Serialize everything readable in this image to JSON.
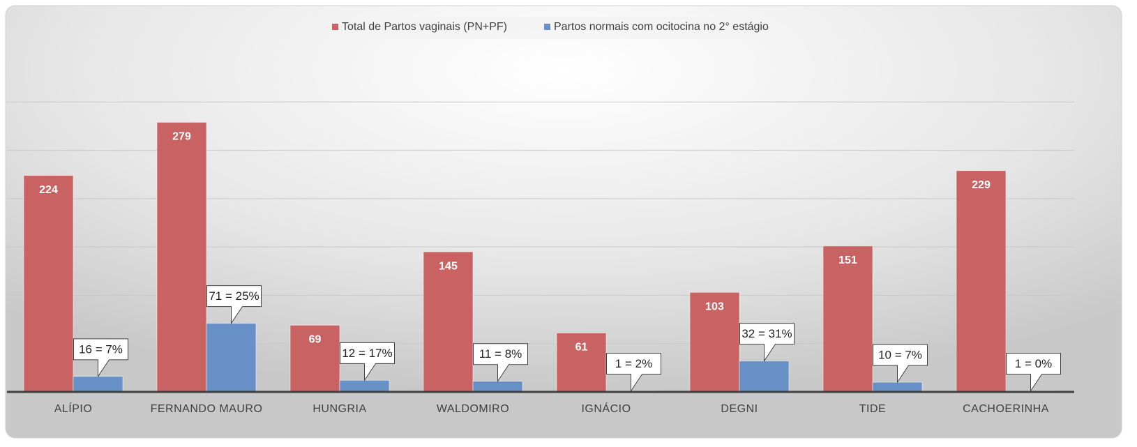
{
  "chart_data": {
    "type": "bar",
    "categories": [
      "ALÍPIO",
      "FERNANDO MAURO",
      "HUNGRIA",
      "WALDOMIRO",
      "IGNÁCIO",
      "DEGNI",
      "TIDE",
      "CACHOERINHA"
    ],
    "series": [
      {
        "name": "Total de Partos vaginais (PN+PF)",
        "color": "#c96363",
        "values": [
          224,
          279,
          69,
          145,
          61,
          103,
          151,
          229
        ]
      },
      {
        "name": "Partos normais com ocitocina no 2° estágio",
        "color": "#6690c6",
        "values": [
          16,
          71,
          12,
          11,
          1,
          32,
          10,
          1
        ],
        "value_labels": [
          "16 = 7%",
          "71 = 25%",
          "12 = 17%",
          "11 = 8%",
          "1 = 2%",
          "32 = 31%",
          "10 = 7%",
          "1 = 0%"
        ]
      }
    ],
    "ylim": [
      0,
      350
    ],
    "yticks": [
      0,
      50,
      100,
      150,
      200,
      250,
      300
    ],
    "grid": true,
    "legend": "top"
  }
}
